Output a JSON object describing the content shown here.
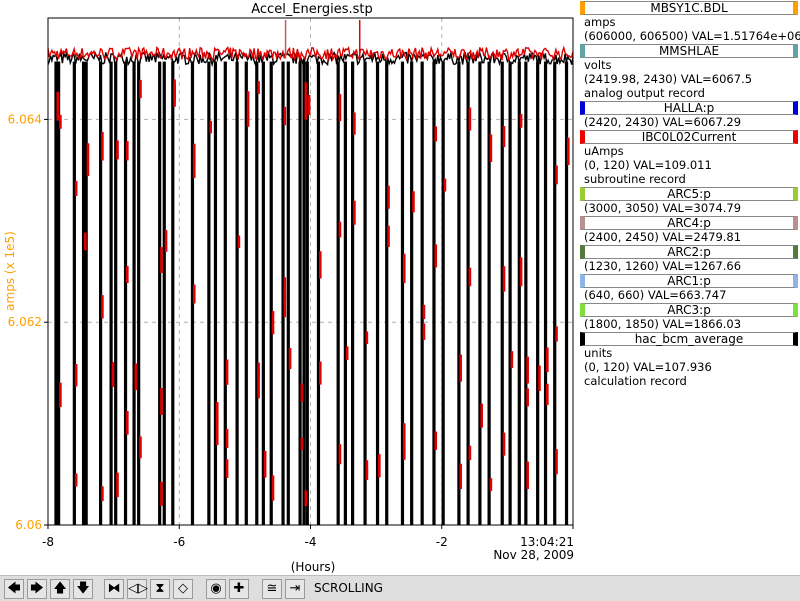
{
  "chart_data": {
    "type": "line",
    "title": "Accel_Energies.stp",
    "ylabel": "amps (x 1e5)",
    "xlabel": "(Hours)",
    "ylim": [
      6.06,
      6.065
    ],
    "xlim": [
      -8,
      0
    ],
    "y_ticks": [
      "6.064",
      "6.062",
      "6.06"
    ],
    "y_tick_values": [
      6.064,
      6.062,
      6.06
    ],
    "x_ticks": [
      "-8",
      "-6",
      "-4",
      "-2",
      "13:04:21"
    ],
    "x_tick_values": [
      -8,
      -6,
      -4,
      -2,
      0
    ],
    "date_label": "Nov 28, 2009",
    "grid": true,
    "series": [
      {
        "name": "MBSY1C.BDL",
        "color": "#000000",
        "baseline": 6.0646
      },
      {
        "name": "MMSHLAE",
        "color": "#ff0000",
        "baseline": 6.06465
      }
    ],
    "dropouts": [
      -7.88,
      -7.84,
      -7.6,
      -7.46,
      -7.42,
      -7.2,
      -7.04,
      -6.97,
      -6.82,
      -6.69,
      -6.62,
      -6.3,
      -6.23,
      -6.1,
      -5.8,
      -5.55,
      -5.45,
      -5.3,
      -5.12,
      -4.98,
      -4.82,
      -4.72,
      -4.6,
      -4.42,
      -4.34,
      -4.16,
      -4.1,
      -4.05,
      -3.88,
      -3.58,
      -3.47,
      -3.36,
      -3.17,
      -2.98,
      -2.84,
      -2.6,
      -2.46,
      -2.3,
      -2.12,
      -1.98,
      -1.74,
      -1.6,
      -1.42,
      -1.28,
      -1.08,
      -0.96,
      -0.82,
      -0.72,
      -0.54,
      -0.42,
      -0.28,
      -0.1
    ],
    "red_spikes": [
      -4.38,
      -3.25
    ]
  },
  "legend": [
    {
      "name": "MBSY1C.BDL",
      "color": "#ff9f00",
      "lines": [
        "amps",
        "(606000, 606500)  VAL=1.51764e+06"
      ]
    },
    {
      "name": "MMSHLAE",
      "color": "#5fa5a5",
      "lines": [
        "volts",
        "(2419.98, 2430) VAL=6067.5",
        "analog output record"
      ]
    },
    {
      "name": "HALLA:p",
      "color": "#0000dd",
      "lines": [
        "(2420, 2430) VAL=6067.29"
      ]
    },
    {
      "name": "IBC0L02Current",
      "color": "#ee0000",
      "lines": [
        "uAmps",
        "(0, 120) VAL=109.011",
        "subroutine record"
      ]
    },
    {
      "name": "ARC5:p",
      "color": "#9acd32",
      "lines": [
        "(3000, 3050) VAL=3074.79"
      ]
    },
    {
      "name": "ARC4:p",
      "color": "#b89090",
      "lines": [
        "(2400, 2450) VAL=2479.81"
      ]
    },
    {
      "name": "ARC2:p",
      "color": "#557a3c",
      "lines": [
        "(1230, 1260) VAL=1267.66"
      ]
    },
    {
      "name": "ARC1:p",
      "color": "#8fb4e8",
      "lines": [
        "(640, 660) VAL=663.747"
      ]
    },
    {
      "name": "ARC3:p",
      "color": "#7ee03c",
      "lines": [
        "(1800, 1850) VAL=1866.03"
      ]
    },
    {
      "name": "hac_bcm_average",
      "color": "#000000",
      "lines": [
        "units",
        "(0, 120) VAL=107.936",
        "calculation record"
      ]
    }
  ],
  "toolbar": {
    "buttons": [
      {
        "name": "scroll-left-button",
        "glyph": "🡄"
      },
      {
        "name": "scroll-right-button",
        "glyph": "🡆"
      },
      {
        "name": "scroll-up-button",
        "glyph": "🡅"
      },
      {
        "name": "scroll-down-button",
        "glyph": "🡇"
      },
      {
        "name": "zoom-in-x-button",
        "glyph": "⧓"
      },
      {
        "name": "zoom-out-x-button",
        "glyph": "◁▷"
      },
      {
        "name": "zoom-in-y-button",
        "glyph": "⧗"
      },
      {
        "name": "zoom-out-y-button",
        "glyph": "◇"
      },
      {
        "name": "auto-scale-button",
        "glyph": "◉"
      },
      {
        "name": "add-button",
        "glyph": "✚"
      },
      {
        "name": "config-button",
        "glyph": "≅"
      },
      {
        "name": "scroll-end-button",
        "glyph": "⇥"
      }
    ],
    "status": "SCROLLING"
  }
}
